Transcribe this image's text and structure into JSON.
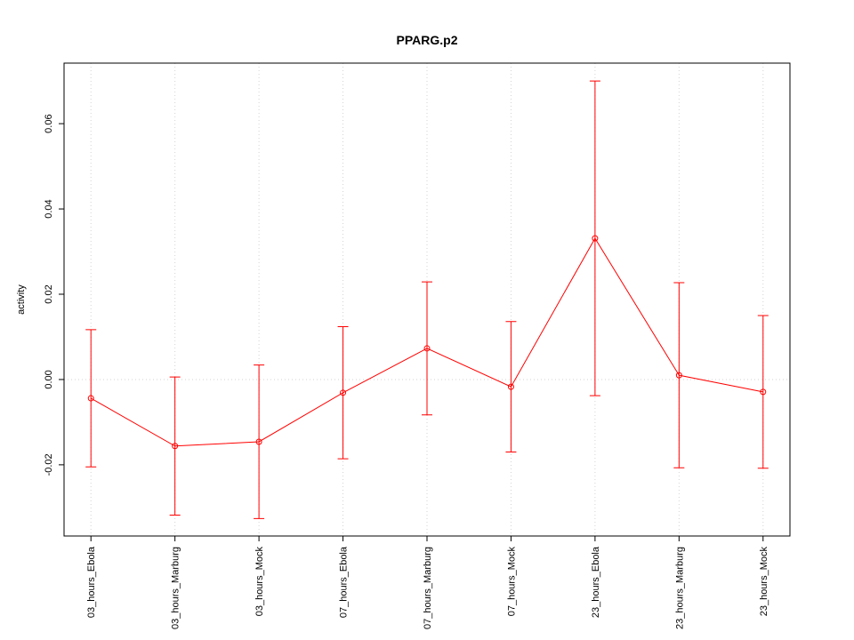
{
  "chart_data": {
    "type": "errorline",
    "title": "PPARG.p2",
    "y_label": "activity",
    "categories": [
      "03_hours_Ebola",
      "03_hours_Marburg",
      "03_hours_Mock",
      "07_hours_Ebola",
      "07_hours_Marburg",
      "07_hours_Mock",
      "23_hours_Ebola",
      "23_hours_Marburg",
      "23_hours_Mock"
    ],
    "series": [
      {
        "name": "PPARG.p2",
        "color": "#ff0000",
        "values": [
          -0.0044,
          -0.0156,
          -0.0146,
          -0.0031,
          0.0073,
          -0.0017,
          0.0331,
          0.001,
          -0.0029
        ],
        "errors": [
          0.0161,
          0.0162,
          0.018,
          0.0155,
          0.0156,
          0.0153,
          0.0369,
          0.0217,
          0.0179
        ]
      }
    ],
    "ylim": [
      -0.0367,
      0.0742
    ],
    "yticks": [
      {
        "value": -0.02,
        "label": "-0.02"
      },
      {
        "value": 0,
        "label": "0.00"
      },
      {
        "value": 0.02,
        "label": "0.02"
      },
      {
        "value": 0.04,
        "label": "0.04"
      },
      {
        "value": 0.06,
        "label": "0.06"
      }
    ],
    "reference_line": 0,
    "grid": true
  }
}
